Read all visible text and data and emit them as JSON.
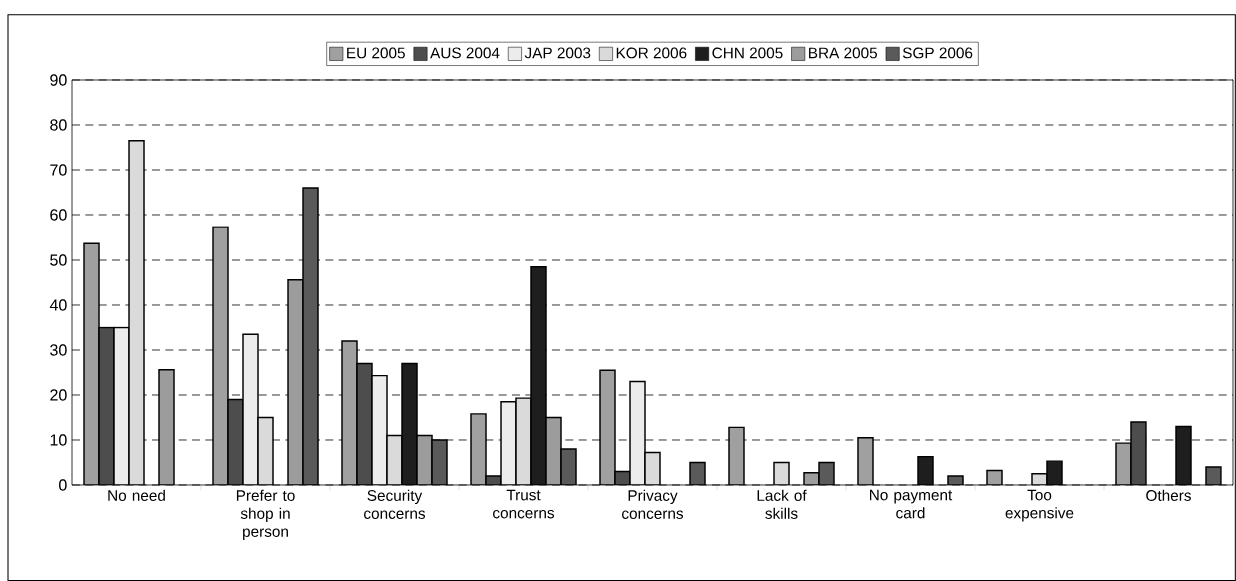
{
  "chart_data": {
    "type": "bar",
    "categories": [
      "No need",
      "Prefer to shop in person",
      "Security concerns",
      "Trust concerns",
      "Privacy concerns",
      "Lack of skills",
      "No payment card",
      "Too expensive",
      "Others"
    ],
    "series": [
      {
        "name": "EU 2005",
        "color": "#a0a0a0",
        "values": [
          53.7,
          57.3,
          32,
          15.8,
          25.5,
          12.8,
          10.5,
          3.2,
          9.3
        ]
      },
      {
        "name": "AUS 2004",
        "color": "#4d4d4d",
        "values": [
          35,
          19,
          27,
          2,
          3,
          null,
          null,
          null,
          14
        ]
      },
      {
        "name": "JAP 2003",
        "color": "#ececec",
        "values": [
          35,
          33.5,
          24.3,
          18.5,
          23,
          null,
          null,
          null,
          null
        ]
      },
      {
        "name": "KOR 2006",
        "color": "#dadada",
        "values": [
          76.5,
          15,
          11,
          19.3,
          7.2,
          5,
          null,
          2.5,
          null
        ]
      },
      {
        "name": "CHN 2005",
        "color": "#1e1e1e",
        "values": [
          null,
          null,
          27,
          48.5,
          null,
          null,
          6.3,
          5.3,
          13
        ]
      },
      {
        "name": "BRA 2005",
        "color": "#9c9c9c",
        "values": [
          25.6,
          45.6,
          11,
          15,
          null,
          2.7,
          null,
          null,
          null
        ]
      },
      {
        "name": "SGP 2006",
        "color": "#5a5a5a",
        "values": [
          null,
          66,
          10,
          8,
          5,
          5,
          2,
          null,
          4
        ]
      }
    ],
    "ylim": [
      0,
      90
    ],
    "yticks": [
      0,
      10,
      20,
      30,
      40,
      50,
      60,
      70,
      80,
      90
    ],
    "grid": "y",
    "legend": "top"
  }
}
